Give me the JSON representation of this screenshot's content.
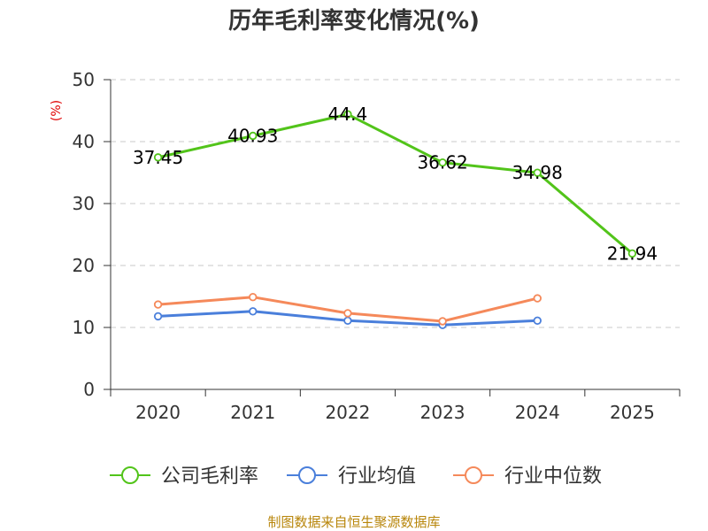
{
  "chart_data": {
    "type": "line",
    "title": "历年毛利率变化情况(%)",
    "ylabel": "(%)",
    "xlabel": "",
    "categories": [
      "2020",
      "2021",
      "2022",
      "2023",
      "2024",
      "2025"
    ],
    "ylim": [
      0,
      50
    ],
    "yticks": [
      0,
      10,
      20,
      30,
      40,
      50
    ],
    "grid": true,
    "legend_position": "bottom",
    "series": [
      {
        "name": "公司毛利率",
        "color": "#52c41a",
        "values": [
          37.45,
          40.93,
          44.4,
          36.62,
          34.98,
          21.94
        ],
        "labels": [
          "37.45",
          "40.93",
          "44.4",
          "36.62",
          "34.98",
          "21.94"
        ]
      },
      {
        "name": "行业均值",
        "color": "#4a7fdb",
        "values": [
          11.8,
          12.6,
          11.1,
          10.4,
          11.1,
          null
        ]
      },
      {
        "name": "行业中位数",
        "color": "#f5895a",
        "values": [
          13.7,
          14.9,
          12.3,
          11.0,
          14.7,
          null
        ]
      }
    ]
  },
  "source": "制图数据来自恒生聚源数据库"
}
